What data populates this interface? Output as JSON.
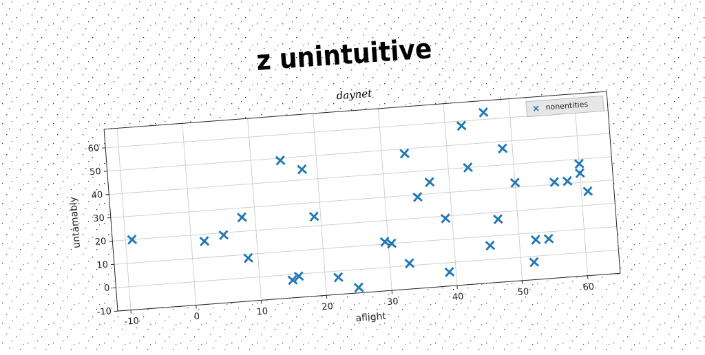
{
  "chart_data": {
    "type": "scatter",
    "title": "z unintuitive",
    "subtitle": "daynet",
    "x_label": "aflight",
    "y_label": "untamably",
    "series": [
      {
        "name": "nonentities",
        "color": "#1f77b4",
        "x": [
          -9,
          2,
          5,
          8,
          8.5,
          14.5,
          17.7,
          19,
          15,
          16,
          22,
          25,
          29.5,
          30.5,
          33,
          33.5,
          35,
          37,
          39,
          39,
          42.5,
          43,
          46,
          45.5,
          47,
          48.5,
          50,
          52,
          52.5,
          54.5,
          56,
          58,
          60,
          60,
          61
        ],
        "values": [
          20,
          17,
          19,
          26,
          8.4,
          49,
          44.5,
          24,
          -2.4,
          -1,
          -2.7,
          -7.7,
          11,
          10,
          1,
          48,
          29,
          35,
          19,
          -4,
          58,
          40,
          63,
          6,
          17,
          47,
          32,
          -2.5,
          7,
          7,
          31,
          31,
          38,
          34,
          26
        ]
      }
    ],
    "xlim": [
      -12,
      65
    ],
    "ylim": [
      -10,
      68
    ],
    "xticks": [
      -10,
      0,
      10,
      20,
      30,
      40,
      50,
      60
    ],
    "yticks": [
      -10,
      0,
      10,
      20,
      30,
      40,
      50,
      60
    ],
    "grid": true,
    "legend": "upper right"
  }
}
